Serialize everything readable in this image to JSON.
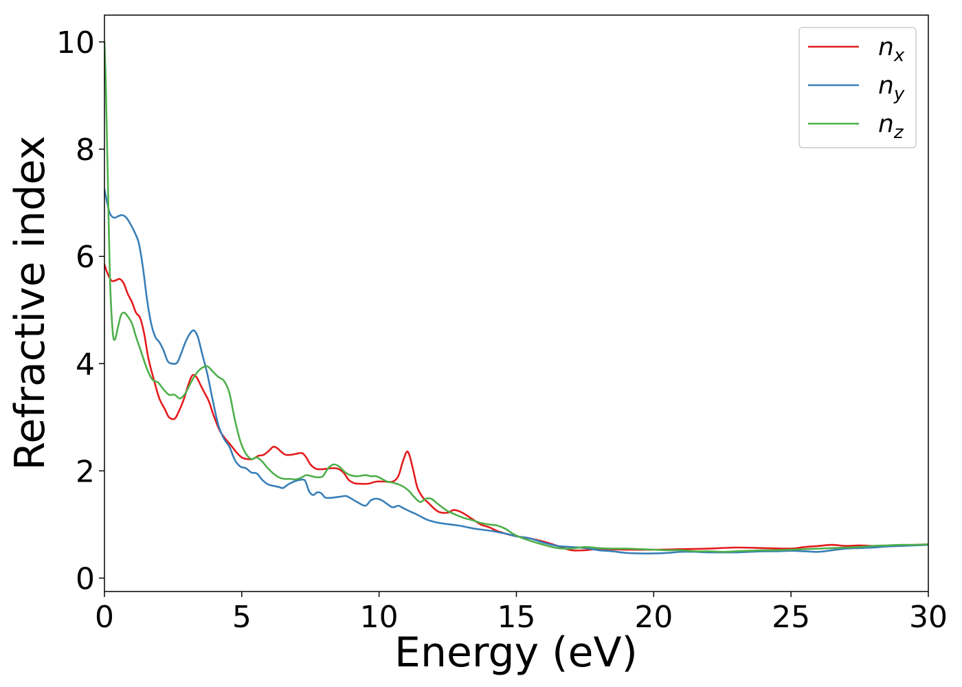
{
  "chart_data": {
    "type": "line",
    "xlabel": "Energy (eV)",
    "ylabel": "Refractive index",
    "xlim": [
      0,
      30
    ],
    "ylim": [
      -0.25,
      10.5
    ],
    "xticks": [
      0,
      5,
      10,
      15,
      20,
      25,
      30
    ],
    "yticks": [
      0,
      2,
      4,
      6,
      8,
      10
    ],
    "grid": false,
    "legend_position": "top-right",
    "series": [
      {
        "name": "n_x",
        "legend_base": "n",
        "legend_sub": "x",
        "color": "#e41a1c",
        "points": [
          [
            0,
            5.85
          ],
          [
            0.1,
            5.7
          ],
          [
            0.25,
            5.55
          ],
          [
            0.4,
            5.55
          ],
          [
            0.55,
            5.58
          ],
          [
            0.7,
            5.5
          ],
          [
            0.85,
            5.3
          ],
          [
            1.0,
            5.15
          ],
          [
            1.15,
            4.95
          ],
          [
            1.3,
            4.85
          ],
          [
            1.45,
            4.55
          ],
          [
            1.6,
            4.1
          ],
          [
            1.8,
            3.7
          ],
          [
            2.0,
            3.35
          ],
          [
            2.2,
            3.15
          ],
          [
            2.35,
            3.0
          ],
          [
            2.55,
            2.97
          ],
          [
            2.7,
            3.1
          ],
          [
            2.9,
            3.35
          ],
          [
            3.05,
            3.6
          ],
          [
            3.2,
            3.78
          ],
          [
            3.35,
            3.75
          ],
          [
            3.5,
            3.6
          ],
          [
            3.65,
            3.45
          ],
          [
            3.8,
            3.3
          ],
          [
            4.0,
            3.0
          ],
          [
            4.2,
            2.75
          ],
          [
            4.4,
            2.6
          ],
          [
            4.6,
            2.48
          ],
          [
            4.8,
            2.35
          ],
          [
            5.0,
            2.25
          ],
          [
            5.2,
            2.22
          ],
          [
            5.4,
            2.22
          ],
          [
            5.6,
            2.28
          ],
          [
            5.8,
            2.3
          ],
          [
            6.0,
            2.38
          ],
          [
            6.15,
            2.45
          ],
          [
            6.3,
            2.42
          ],
          [
            6.45,
            2.35
          ],
          [
            6.6,
            2.3
          ],
          [
            6.8,
            2.3
          ],
          [
            7.0,
            2.32
          ],
          [
            7.2,
            2.33
          ],
          [
            7.35,
            2.25
          ],
          [
            7.5,
            2.12
          ],
          [
            7.7,
            2.04
          ],
          [
            7.9,
            2.03
          ],
          [
            8.1,
            2.04
          ],
          [
            8.3,
            2.05
          ],
          [
            8.5,
            2.04
          ],
          [
            8.7,
            1.97
          ],
          [
            8.9,
            1.83
          ],
          [
            9.1,
            1.77
          ],
          [
            9.3,
            1.76
          ],
          [
            9.6,
            1.76
          ],
          [
            9.9,
            1.8
          ],
          [
            10.2,
            1.8
          ],
          [
            10.5,
            1.8
          ],
          [
            10.7,
            1.9
          ],
          [
            10.85,
            2.15
          ],
          [
            11.0,
            2.35
          ],
          [
            11.1,
            2.3
          ],
          [
            11.25,
            2.0
          ],
          [
            11.4,
            1.68
          ],
          [
            11.6,
            1.5
          ],
          [
            11.8,
            1.4
          ],
          [
            12.0,
            1.3
          ],
          [
            12.2,
            1.23
          ],
          [
            12.5,
            1.22
          ],
          [
            12.7,
            1.27
          ],
          [
            12.9,
            1.25
          ],
          [
            13.1,
            1.2
          ],
          [
            13.4,
            1.1
          ],
          [
            13.7,
            1.0
          ],
          [
            14.0,
            0.95
          ],
          [
            14.3,
            0.88
          ],
          [
            14.6,
            0.83
          ],
          [
            15.0,
            0.78
          ],
          [
            15.5,
            0.74
          ],
          [
            16.0,
            0.68
          ],
          [
            16.5,
            0.6
          ],
          [
            17.0,
            0.52
          ],
          [
            17.5,
            0.52
          ],
          [
            18.0,
            0.54
          ],
          [
            19.0,
            0.53
          ],
          [
            20.0,
            0.53
          ],
          [
            21.0,
            0.54
          ],
          [
            22.0,
            0.55
          ],
          [
            23.0,
            0.57
          ],
          [
            24.0,
            0.56
          ],
          [
            25.0,
            0.55
          ],
          [
            25.5,
            0.58
          ],
          [
            26.0,
            0.6
          ],
          [
            26.5,
            0.62
          ],
          [
            27.0,
            0.6
          ],
          [
            27.5,
            0.61
          ],
          [
            28.0,
            0.6
          ],
          [
            28.5,
            0.6
          ],
          [
            29.0,
            0.61
          ],
          [
            29.5,
            0.62
          ],
          [
            30.0,
            0.63
          ]
        ]
      },
      {
        "name": "n_y",
        "legend_base": "n",
        "legend_sub": "y",
        "color": "#377eb8",
        "points": [
          [
            0,
            7.25
          ],
          [
            0.1,
            7.0
          ],
          [
            0.2,
            6.8
          ],
          [
            0.35,
            6.72
          ],
          [
            0.5,
            6.75
          ],
          [
            0.65,
            6.77
          ],
          [
            0.8,
            6.72
          ],
          [
            0.95,
            6.6
          ],
          [
            1.1,
            6.45
          ],
          [
            1.25,
            6.25
          ],
          [
            1.4,
            5.8
          ],
          [
            1.55,
            5.2
          ],
          [
            1.7,
            4.75
          ],
          [
            1.85,
            4.5
          ],
          [
            2.0,
            4.4
          ],
          [
            2.15,
            4.25
          ],
          [
            2.3,
            4.05
          ],
          [
            2.45,
            4.0
          ],
          [
            2.65,
            4.02
          ],
          [
            2.8,
            4.2
          ],
          [
            2.95,
            4.4
          ],
          [
            3.1,
            4.55
          ],
          [
            3.25,
            4.62
          ],
          [
            3.4,
            4.5
          ],
          [
            3.55,
            4.2
          ],
          [
            3.75,
            3.8
          ],
          [
            3.95,
            3.3
          ],
          [
            4.15,
            2.85
          ],
          [
            4.35,
            2.6
          ],
          [
            4.55,
            2.45
          ],
          [
            4.75,
            2.2
          ],
          [
            4.95,
            2.08
          ],
          [
            5.15,
            2.05
          ],
          [
            5.35,
            1.97
          ],
          [
            5.55,
            1.95
          ],
          [
            5.75,
            1.83
          ],
          [
            5.95,
            1.75
          ],
          [
            6.15,
            1.72
          ],
          [
            6.35,
            1.7
          ],
          [
            6.5,
            1.68
          ],
          [
            6.7,
            1.75
          ],
          [
            6.9,
            1.8
          ],
          [
            7.1,
            1.83
          ],
          [
            7.3,
            1.82
          ],
          [
            7.45,
            1.62
          ],
          [
            7.6,
            1.55
          ],
          [
            7.75,
            1.6
          ],
          [
            7.9,
            1.58
          ],
          [
            8.05,
            1.5
          ],
          [
            8.3,
            1.5
          ],
          [
            8.6,
            1.52
          ],
          [
            8.8,
            1.53
          ],
          [
            9.0,
            1.48
          ],
          [
            9.2,
            1.42
          ],
          [
            9.5,
            1.35
          ],
          [
            9.7,
            1.45
          ],
          [
            9.9,
            1.48
          ],
          [
            10.1,
            1.45
          ],
          [
            10.3,
            1.38
          ],
          [
            10.5,
            1.32
          ],
          [
            10.7,
            1.35
          ],
          [
            10.9,
            1.3
          ],
          [
            11.1,
            1.25
          ],
          [
            11.4,
            1.18
          ],
          [
            11.7,
            1.1
          ],
          [
            12.0,
            1.05
          ],
          [
            12.3,
            1.02
          ],
          [
            12.6,
            1.0
          ],
          [
            12.9,
            0.98
          ],
          [
            13.2,
            0.95
          ],
          [
            13.5,
            0.92
          ],
          [
            13.8,
            0.9
          ],
          [
            14.1,
            0.88
          ],
          [
            14.4,
            0.85
          ],
          [
            14.7,
            0.82
          ],
          [
            15.0,
            0.78
          ],
          [
            15.5,
            0.74
          ],
          [
            16.0,
            0.66
          ],
          [
            16.5,
            0.6
          ],
          [
            17.0,
            0.58
          ],
          [
            17.5,
            0.56
          ],
          [
            18.0,
            0.52
          ],
          [
            18.5,
            0.5
          ],
          [
            19.0,
            0.47
          ],
          [
            19.5,
            0.46
          ],
          [
            20.0,
            0.46
          ],
          [
            20.5,
            0.47
          ],
          [
            21.0,
            0.49
          ],
          [
            21.5,
            0.49
          ],
          [
            22.0,
            0.48
          ],
          [
            22.5,
            0.48
          ],
          [
            23.0,
            0.48
          ],
          [
            23.5,
            0.49
          ],
          [
            24.0,
            0.5
          ],
          [
            24.5,
            0.5
          ],
          [
            25.0,
            0.51
          ],
          [
            25.5,
            0.5
          ],
          [
            26.0,
            0.49
          ],
          [
            26.5,
            0.52
          ],
          [
            27.0,
            0.55
          ],
          [
            27.5,
            0.56
          ],
          [
            28.0,
            0.57
          ],
          [
            28.5,
            0.59
          ],
          [
            29.0,
            0.6
          ],
          [
            29.5,
            0.61
          ],
          [
            30.0,
            0.62
          ]
        ]
      },
      {
        "name": "n_z",
        "legend_base": "n",
        "legend_sub": "z",
        "color": "#4daf4a",
        "points": [
          [
            0,
            10.0
          ],
          [
            0.05,
            9.2
          ],
          [
            0.12,
            7.5
          ],
          [
            0.2,
            5.6
          ],
          [
            0.3,
            4.6
          ],
          [
            0.38,
            4.45
          ],
          [
            0.48,
            4.65
          ],
          [
            0.6,
            4.9
          ],
          [
            0.72,
            4.95
          ],
          [
            0.85,
            4.88
          ],
          [
            1.0,
            4.75
          ],
          [
            1.15,
            4.5
          ],
          [
            1.35,
            4.2
          ],
          [
            1.55,
            3.9
          ],
          [
            1.75,
            3.7
          ],
          [
            1.95,
            3.65
          ],
          [
            2.15,
            3.52
          ],
          [
            2.35,
            3.42
          ],
          [
            2.55,
            3.42
          ],
          [
            2.75,
            3.35
          ],
          [
            2.95,
            3.45
          ],
          [
            3.15,
            3.65
          ],
          [
            3.35,
            3.82
          ],
          [
            3.55,
            3.92
          ],
          [
            3.75,
            3.95
          ],
          [
            3.95,
            3.85
          ],
          [
            4.15,
            3.75
          ],
          [
            4.35,
            3.68
          ],
          [
            4.55,
            3.45
          ],
          [
            4.75,
            2.95
          ],
          [
            4.95,
            2.55
          ],
          [
            5.15,
            2.32
          ],
          [
            5.35,
            2.22
          ],
          [
            5.55,
            2.25
          ],
          [
            5.75,
            2.17
          ],
          [
            5.95,
            2.05
          ],
          [
            6.15,
            1.95
          ],
          [
            6.35,
            1.88
          ],
          [
            6.55,
            1.85
          ],
          [
            6.75,
            1.85
          ],
          [
            6.95,
            1.84
          ],
          [
            7.15,
            1.87
          ],
          [
            7.35,
            1.92
          ],
          [
            7.55,
            1.9
          ],
          [
            7.75,
            1.88
          ],
          [
            7.95,
            1.9
          ],
          [
            8.15,
            2.05
          ],
          [
            8.35,
            2.12
          ],
          [
            8.55,
            2.08
          ],
          [
            8.75,
            1.98
          ],
          [
            8.95,
            1.92
          ],
          [
            9.2,
            1.9
          ],
          [
            9.5,
            1.92
          ],
          [
            9.7,
            1.9
          ],
          [
            9.9,
            1.9
          ],
          [
            10.1,
            1.85
          ],
          [
            10.3,
            1.8
          ],
          [
            10.5,
            1.78
          ],
          [
            10.7,
            1.75
          ],
          [
            10.9,
            1.7
          ],
          [
            11.1,
            1.62
          ],
          [
            11.3,
            1.5
          ],
          [
            11.5,
            1.42
          ],
          [
            11.7,
            1.48
          ],
          [
            11.9,
            1.48
          ],
          [
            12.1,
            1.4
          ],
          [
            12.3,
            1.32
          ],
          [
            12.5,
            1.25
          ],
          [
            12.8,
            1.18
          ],
          [
            13.1,
            1.12
          ],
          [
            13.4,
            1.08
          ],
          [
            13.7,
            1.03
          ],
          [
            14.0,
            1.0
          ],
          [
            14.3,
            0.98
          ],
          [
            14.6,
            0.92
          ],
          [
            14.9,
            0.82
          ],
          [
            15.2,
            0.75
          ],
          [
            15.6,
            0.68
          ],
          [
            16.0,
            0.62
          ],
          [
            16.5,
            0.56
          ],
          [
            17.0,
            0.55
          ],
          [
            17.5,
            0.58
          ],
          [
            18.0,
            0.56
          ],
          [
            18.5,
            0.55
          ],
          [
            19.0,
            0.55
          ],
          [
            19.5,
            0.54
          ],
          [
            20.0,
            0.53
          ],
          [
            20.5,
            0.52
          ],
          [
            21.0,
            0.52
          ],
          [
            21.5,
            0.5
          ],
          [
            22.0,
            0.5
          ],
          [
            22.5,
            0.49
          ],
          [
            23.0,
            0.5
          ],
          [
            23.5,
            0.51
          ],
          [
            24.0,
            0.52
          ],
          [
            24.5,
            0.52
          ],
          [
            25.0,
            0.53
          ],
          [
            25.5,
            0.54
          ],
          [
            26.0,
            0.55
          ],
          [
            26.5,
            0.56
          ],
          [
            27.0,
            0.57
          ],
          [
            27.5,
            0.58
          ],
          [
            28.0,
            0.6
          ],
          [
            28.5,
            0.61
          ],
          [
            29.0,
            0.62
          ],
          [
            29.5,
            0.62
          ],
          [
            30.0,
            0.63
          ]
        ]
      }
    ]
  }
}
